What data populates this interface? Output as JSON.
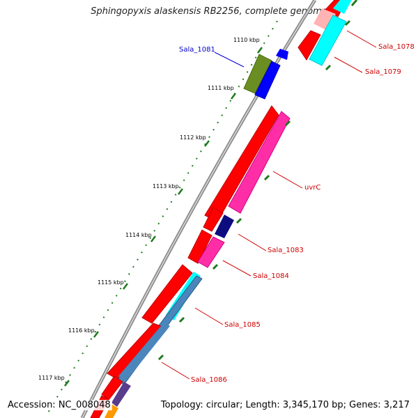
{
  "title": "Sphingopyxis alaskensis RB2256, complete genome",
  "footer": {
    "accession": "Accession: NC_008048",
    "summary": "Topology: circular; Length: 3,345,170 bp; Genes: 3,217"
  },
  "kbp_labels": [
    "1110 kbp",
    "1111 kbp",
    "1112 kbp",
    "1113 kbp",
    "1114 kbp",
    "1115 kbp",
    "1116 kbp",
    "1117 kbp"
  ],
  "gene_labels": [
    "Sala_1081",
    "Sala_1078",
    "Sala_1079",
    "uvrC",
    "Sala_1083",
    "Sala_1084",
    "Sala_1085",
    "Sala_1086"
  ],
  "colors": {
    "backbone": "#8c8c8c",
    "forward_feature": "#ff0000",
    "reverse_feature": "#ff0000",
    "pink": "#ff2ea6",
    "cyan": "#00ffff",
    "navy": "#0d0d80",
    "steel_blue": "#4a86bb",
    "olive": "#6b8e23",
    "blue": "#0000ff",
    "tick": "#1e7b1e",
    "label_red": "#cc0000",
    "label_blue": "#0000cc"
  }
}
